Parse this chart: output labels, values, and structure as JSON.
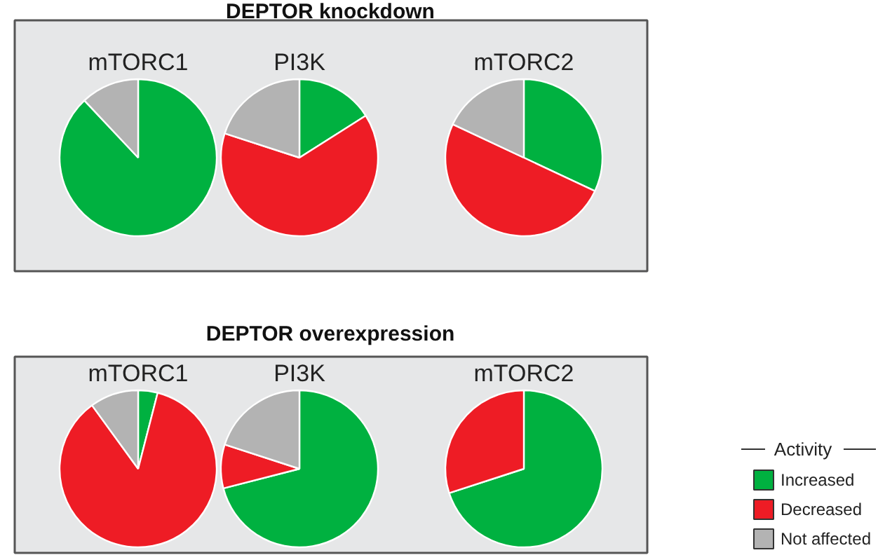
{
  "chart_data": [
    {
      "type": "pie",
      "title": "mTORC1",
      "annotations": [
        "DEPTOR knockdown"
      ],
      "categories": [
        "Increased",
        "Decreased",
        "Not affected"
      ],
      "values": [
        88,
        0,
        12
      ],
      "colors": [
        "#00b140",
        "#ee1c25",
        "#b3b3b3"
      ],
      "legend": "bottom right",
      "legend_title": "Activity"
    },
    {
      "type": "pie",
      "title": "PI3K",
      "values": [
        16,
        64,
        20
      ],
      "colors": [
        "#00b140",
        "#ee1c25",
        "#b3b3b3"
      ]
    },
    {
      "type": "pie",
      "title": "mTORC2",
      "values": [
        32,
        50,
        18
      ],
      "colors": [
        "#00b140",
        "#ee1c25",
        "#b3b3b3"
      ]
    },
    {
      "type": "pie",
      "title": "mTORC1",
      "annotations": [
        "DEPTOR overexpression"
      ],
      "values": [
        4,
        86,
        10
      ],
      "colors": [
        "#00b140",
        "#ee1c25",
        "#b3b3b3"
      ]
    },
    {
      "type": "pie",
      "title": "PI3K",
      "values": [
        71,
        9,
        20
      ],
      "colors": [
        "#00b140",
        "#ee1c25",
        "#b3b3b3"
      ]
    },
    {
      "type": "pie",
      "title": "mTORC2",
      "values": [
        70,
        30,
        0
      ],
      "colors": [
        "#00b140",
        "#ee1c25",
        "#b3b3b3"
      ]
    }
  ]
}
